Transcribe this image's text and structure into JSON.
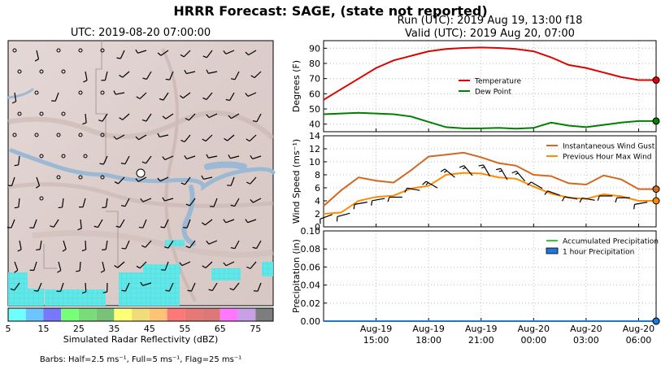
{
  "title": "HRRR Forecast: SAGE, (state not reported)",
  "map": {
    "title": "UTC: 2019-08-20 07:00:00",
    "colorbar": {
      "label": "Simulated Radar Reflectivity (dBZ)",
      "ticks": [
        5,
        15,
        25,
        35,
        45,
        55,
        65,
        75
      ],
      "colors": [
        "#70ffff",
        "#6ec4ff",
        "#7878ff",
        "#78ff78",
        "#78dc78",
        "#78c378",
        "#ffff78",
        "#f0dc78",
        "#ffc378",
        "#ff7878",
        "#e67878",
        "#dc7878",
        "#ff78ff",
        "#c8a0e6",
        "#7d7d7d"
      ]
    },
    "barbs_note": "Barbs: Half=2.5 ms⁻¹, Full=5 ms⁻¹, Flag=25 ms⁻¹"
  },
  "header": {
    "run": "Run (UTC): 2019 Aug 19, 13:00 f18",
    "valid": "Valid (UTC): 2019 Aug 20, 07:00"
  },
  "chart_data": [
    {
      "type": "line",
      "ylabel": "Degrees (F)",
      "ylim": [
        35,
        95
      ],
      "yticks": [
        40,
        50,
        60,
        70,
        80,
        90
      ],
      "x": [
        12.0,
        13,
        14,
        15,
        16,
        17,
        18,
        19,
        20,
        21,
        22,
        23,
        24,
        25,
        26,
        27,
        28,
        29,
        30,
        31
      ],
      "series": [
        {
          "name": "Temperature",
          "color": "#e00000",
          "values": [
            56,
            63,
            70,
            77,
            82,
            85,
            88,
            89.5,
            90.2,
            90.5,
            90.2,
            89.5,
            88,
            84,
            79,
            77,
            74,
            71,
            69,
            69
          ]
        },
        {
          "name": "Dew Point",
          "color": "#007f00",
          "values": [
            46.5,
            47,
            47.5,
            47,
            46.5,
            45,
            41.5,
            38,
            37.2,
            37.2,
            37.5,
            37,
            37.5,
            41,
            39,
            38,
            39.5,
            41,
            42,
            42
          ]
        }
      ],
      "legend": "center"
    },
    {
      "type": "line",
      "ylabel": "Wind Speed (ms⁻¹)",
      "ylim": [
        0,
        14
      ],
      "yticks": [
        0,
        2,
        4,
        6,
        8,
        10,
        12,
        14
      ],
      "x": [
        12.0,
        13,
        14,
        15,
        16,
        17,
        18,
        19,
        20,
        21,
        22,
        23,
        24,
        25,
        26,
        27,
        28,
        29,
        30,
        31
      ],
      "series": [
        {
          "name": "Instantaneous Wind Gust",
          "color": "#d2691e",
          "values": [
            3.2,
            5.6,
            7.6,
            7.1,
            6.8,
            8.7,
            10.8,
            11.1,
            11.4,
            10.7,
            9.8,
            9.4,
            8.0,
            7.8,
            6.7,
            6.5,
            7.9,
            7.3,
            5.8,
            5.8
          ]
        },
        {
          "name": "Previous Hour Max Wind",
          "color": "#ff8c00",
          "values": [
            2.0,
            2.2,
            4.0,
            4.6,
            4.8,
            5.9,
            6.3,
            8.0,
            8.3,
            8.2,
            7.6,
            7.4,
            6.2,
            5.1,
            4.5,
            4.3,
            5.0,
            4.7,
            4.0,
            4.0
          ]
        }
      ],
      "legend": "top-right"
    },
    {
      "type": "line",
      "ylabel": "Precipitation (in)",
      "ylim": [
        0,
        0.1
      ],
      "yticks": [
        0.0,
        0.02,
        0.04,
        0.06,
        0.08,
        0.1
      ],
      "x": [
        12.0,
        13,
        14,
        15,
        16,
        17,
        18,
        19,
        20,
        21,
        22,
        23,
        24,
        25,
        26,
        27,
        28,
        29,
        30,
        31
      ],
      "series": [
        {
          "name": "Accumulated Precipitation",
          "color": "#33cc33",
          "values": [
            0,
            0,
            0,
            0,
            0,
            0,
            0,
            0,
            0,
            0,
            0,
            0,
            0,
            0,
            0,
            0,
            0,
            0,
            0,
            0
          ]
        },
        {
          "name": "1 hour Precipitation",
          "color": "#1e78dc",
          "values": [
            0,
            0,
            0,
            0,
            0,
            0,
            0,
            0,
            0,
            0,
            0,
            0,
            0,
            0,
            0,
            0,
            0,
            0,
            0,
            0
          ]
        }
      ],
      "legend": "top-right"
    }
  ],
  "xaxis": {
    "xlim": [
      12,
      31
    ],
    "ticks": [
      {
        "x": 15,
        "line1": "Aug-19",
        "line2": "15:00"
      },
      {
        "x": 18,
        "line1": "Aug-19",
        "line2": "18:00"
      },
      {
        "x": 21,
        "line1": "Aug-19",
        "line2": "21:00"
      },
      {
        "x": 24,
        "line1": "Aug-20",
        "line2": "00:00"
      },
      {
        "x": 27,
        "line1": "Aug-20",
        "line2": "03:00"
      },
      {
        "x": 30,
        "line1": "Aug-20",
        "line2": "06:00"
      }
    ]
  }
}
